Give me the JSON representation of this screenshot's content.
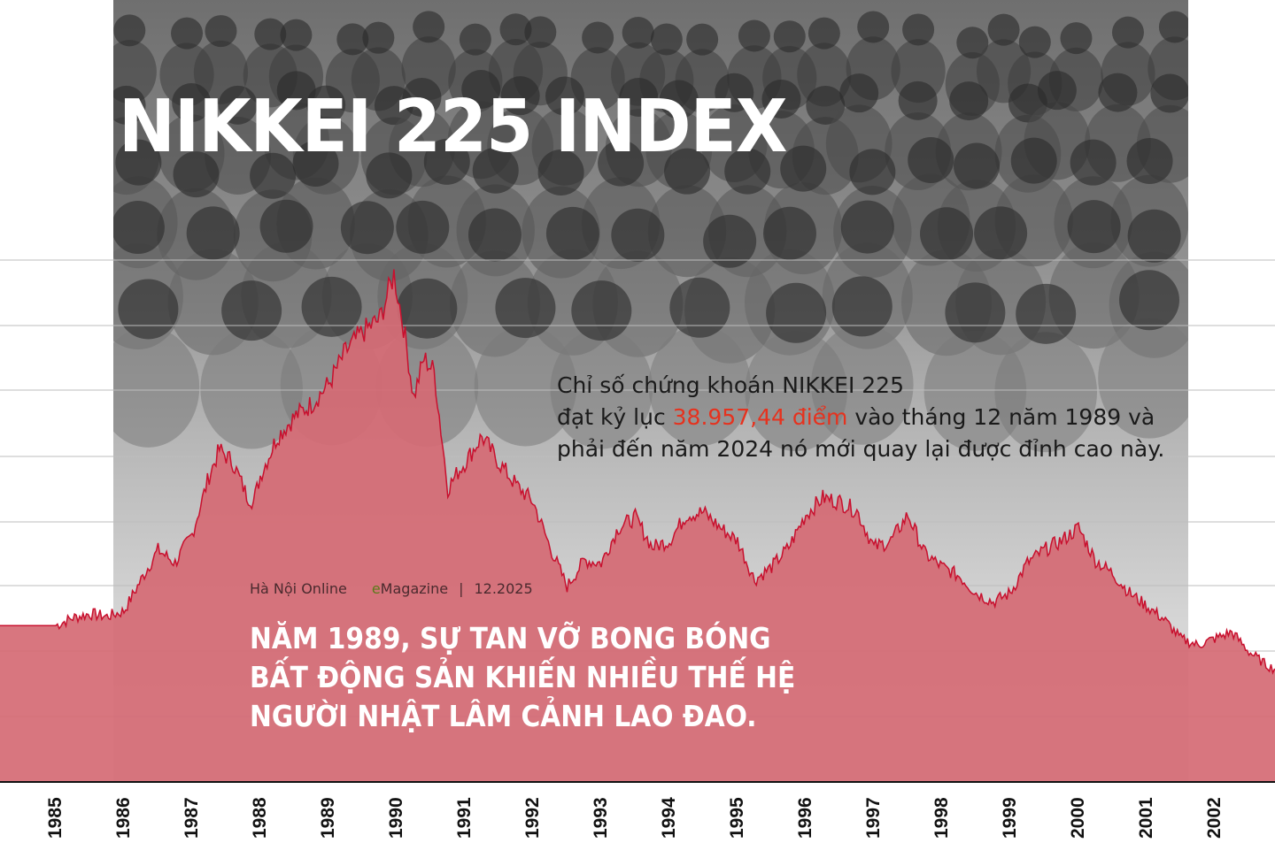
{
  "title": "NIKKEI 225 INDEX",
  "description": {
    "line1": "Chỉ số chứng khoán NIKKEI 225",
    "line2_before": "đạt kỷ lục ",
    "line2_highlight": "38.957,44 điểm",
    "line2_after": " vào tháng 12 năm 1989 và",
    "line3": "phải đến năm 2024 nó mới quay lại được đỉnh cao này."
  },
  "meta": {
    "outlet": "Hà Nội Online",
    "brand_e": "e",
    "brand_rest": "Magazine",
    "separator": "|",
    "date": "12.2025"
  },
  "headline": {
    "line1": "NĂM 1989, SỰ TAN VỠ BONG BÓNG",
    "line2": "BẤT ĐỘNG SẢN KHIẾN NHIỀU THẾ HỆ",
    "line3": "NGƯỜI NHẬT LÂM CẢNH LAO ĐAO."
  },
  "colors": {
    "area_fill": "#d56a74",
    "area_stroke": "#c8102e",
    "highlight": "#e6321e",
    "title": "#ffffff"
  },
  "chart_data": {
    "type": "area",
    "x_axis_labels": [
      "1985",
      "1986",
      "1987",
      "1988",
      "1989",
      "1990",
      "1991",
      "1992",
      "1993",
      "1994",
      "1995",
      "1996",
      "1997",
      "1998",
      "1999",
      "2000",
      "2001",
      "2002"
    ],
    "points": [
      [
        1985.0,
        12000
      ],
      [
        1985.25,
        12600
      ],
      [
        1985.5,
        12900
      ],
      [
        1985.75,
        12700
      ],
      [
        1986.0,
        13100
      ],
      [
        1986.25,
        15500
      ],
      [
        1986.5,
        17800
      ],
      [
        1986.75,
        16800
      ],
      [
        1987.0,
        19000
      ],
      [
        1987.25,
        23500
      ],
      [
        1987.4,
        25500
      ],
      [
        1987.6,
        24500
      ],
      [
        1987.8,
        22000
      ],
      [
        1987.9,
        21500
      ],
      [
        1988.0,
        23500
      ],
      [
        1988.25,
        26500
      ],
      [
        1988.5,
        28000
      ],
      [
        1988.75,
        29000
      ],
      [
        1989.0,
        30500
      ],
      [
        1989.25,
        33000
      ],
      [
        1989.5,
        34500
      ],
      [
        1989.75,
        35500
      ],
      [
        1989.96,
        38957.44
      ],
      [
        1990.1,
        35000
      ],
      [
        1990.25,
        29500
      ],
      [
        1990.4,
        32500
      ],
      [
        1990.55,
        31500
      ],
      [
        1990.75,
        22500
      ],
      [
        1990.9,
        23800
      ],
      [
        1991.0,
        24500
      ],
      [
        1991.25,
        26500
      ],
      [
        1991.5,
        24500
      ],
      [
        1991.75,
        22800
      ],
      [
        1992.0,
        21500
      ],
      [
        1992.25,
        18000
      ],
      [
        1992.5,
        15000
      ],
      [
        1992.75,
        17000
      ],
      [
        1993.0,
        16800
      ],
      [
        1993.25,
        19500
      ],
      [
        1993.5,
        20300
      ],
      [
        1993.75,
        18000
      ],
      [
        1994.0,
        18500
      ],
      [
        1994.25,
        20500
      ],
      [
        1994.5,
        20700
      ],
      [
        1994.75,
        19500
      ],
      [
        1995.0,
        18500
      ],
      [
        1995.25,
        15500
      ],
      [
        1995.5,
        16500
      ],
      [
        1995.75,
        18000
      ],
      [
        1996.0,
        20500
      ],
      [
        1996.25,
        21800
      ],
      [
        1996.5,
        21500
      ],
      [
        1996.75,
        20800
      ],
      [
        1997.0,
        18000
      ],
      [
        1997.25,
        18500
      ],
      [
        1997.5,
        20500
      ],
      [
        1997.75,
        17500
      ],
      [
        1998.0,
        16500
      ],
      [
        1998.25,
        15800
      ],
      [
        1998.5,
        14500
      ],
      [
        1998.75,
        13800
      ],
      [
        1999.0,
        14500
      ],
      [
        1999.25,
        16800
      ],
      [
        1999.5,
        17800
      ],
      [
        1999.75,
        18500
      ],
      [
        2000.0,
        19500
      ],
      [
        2000.25,
        17000
      ],
      [
        2000.5,
        16000
      ],
      [
        2000.75,
        14500
      ],
      [
        2001.0,
        13500
      ],
      [
        2001.25,
        12500
      ],
      [
        2001.5,
        11000
      ],
      [
        2001.75,
        10500
      ],
      [
        2002.0,
        11000
      ],
      [
        2002.25,
        11500
      ],
      [
        2002.5,
        10000
      ],
      [
        2002.75,
        9000
      ],
      [
        2002.9,
        8600
      ]
    ],
    "grid": true
  }
}
